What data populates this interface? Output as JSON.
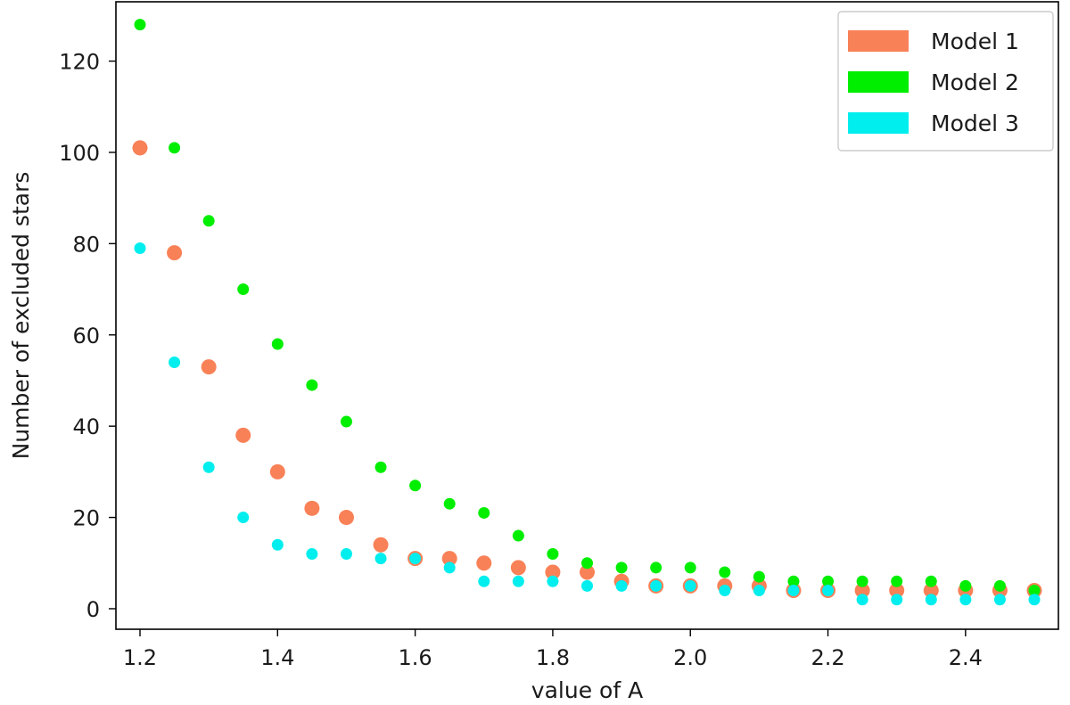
{
  "chart_data": {
    "type": "scatter",
    "title": "",
    "xlabel": "value of A",
    "ylabel": "Number of excluded stars",
    "xlim": [
      1.165,
      2.535
    ],
    "ylim": [
      -4.5,
      133
    ],
    "xticks": [
      1.2,
      1.4,
      1.6,
      1.8,
      2.0,
      2.2,
      2.4
    ],
    "xtick_labels": [
      "1.2",
      "1.4",
      "1.6",
      "1.8",
      "2.0",
      "2.2",
      "2.4"
    ],
    "yticks": [
      0,
      20,
      40,
      60,
      80,
      100,
      120
    ],
    "ytick_labels": [
      "0",
      "20",
      "40",
      "60",
      "80",
      "100",
      "120"
    ],
    "grid": false,
    "legend_position": "top-right",
    "x": [
      1.2,
      1.25,
      1.3,
      1.35,
      1.4,
      1.45,
      1.5,
      1.55,
      1.6,
      1.65,
      1.7,
      1.75,
      1.8,
      1.85,
      1.9,
      1.95,
      2.0,
      2.05,
      2.1,
      2.15,
      2.2,
      2.25,
      2.3,
      2.35,
      2.4,
      2.45,
      2.5
    ],
    "series": [
      {
        "name": "Model 1",
        "color": "#f98157",
        "marker": "large",
        "values": [
          101,
          78,
          53,
          38,
          30,
          22,
          20,
          14,
          11,
          11,
          10,
          9,
          8,
          8,
          6,
          5,
          5,
          5,
          5,
          4,
          4,
          4,
          4,
          4,
          4,
          4,
          4
        ]
      },
      {
        "name": "Model 2",
        "color": "#00ee00",
        "marker": "small",
        "values": [
          128,
          101,
          85,
          70,
          58,
          49,
          41,
          31,
          27,
          23,
          21,
          16,
          12,
          10,
          9,
          9,
          9,
          8,
          7,
          6,
          6,
          6,
          6,
          6,
          5,
          5,
          4
        ]
      },
      {
        "name": "Model 3",
        "color": "#00eeee",
        "marker": "small",
        "values": [
          79,
          54,
          31,
          20,
          14,
          12,
          12,
          11,
          11,
          9,
          6,
          6,
          6,
          5,
          5,
          5,
          5,
          4,
          4,
          4,
          4,
          2,
          2,
          2,
          2,
          2,
          2
        ]
      }
    ]
  }
}
